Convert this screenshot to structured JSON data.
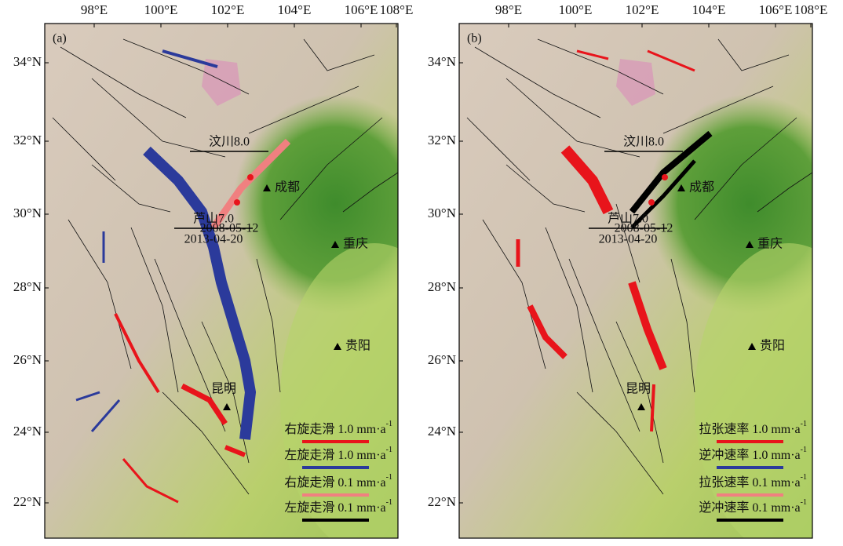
{
  "panels": [
    {
      "label": "(a)",
      "lon_ticks": [
        "98°E",
        "100°E",
        "102°E",
        "104°E",
        "106°E",
        "108°E"
      ],
      "lat_ticks": [
        "34°N",
        "32°N",
        "30°N",
        "28°N",
        "26°N",
        "24°N",
        "22°N"
      ],
      "events": [
        {
          "name": "汶川8.0",
          "date": "2008-05-12"
        },
        {
          "name": "芦山7.0",
          "date": "2013-04-20"
        }
      ],
      "cities": [
        "成都",
        "重庆",
        "贵阳",
        "昆明"
      ],
      "legend": [
        {
          "label": "右旋走滑 1.0 mm·a",
          "exp": "-1",
          "color": "#e8141b"
        },
        {
          "label": "左旋走滑 1.0 mm·a",
          "exp": "-1",
          "color": "#2b3a9b"
        },
        {
          "label": "右旋走滑 0.1 mm·a",
          "exp": "-1",
          "color": "#f08080"
        },
        {
          "label": "左旋走滑 0.1 mm·a",
          "exp": "-1",
          "color": "#000000"
        }
      ]
    },
    {
      "label": "(b)",
      "lon_ticks": [
        "98°E",
        "100°E",
        "102°E",
        "104°E",
        "106°E",
        "108°E"
      ],
      "lat_ticks": [
        "34°N",
        "32°N",
        "30°N",
        "28°N",
        "26°N",
        "24°N",
        "22°N"
      ],
      "events": [
        {
          "name": "汶川8.0",
          "date": "2008-05-12"
        },
        {
          "name": "芦山7.0",
          "date": "2013-04-20"
        }
      ],
      "cities": [
        "成都",
        "重庆",
        "贵阳",
        "昆明"
      ],
      "legend": [
        {
          "label": "拉张速率 1.0 mm·a",
          "exp": "-1",
          "color": "#e8141b"
        },
        {
          "label": "逆冲速率 1.0 mm·a",
          "exp": "-1",
          "color": "#2b3a9b"
        },
        {
          "label": "拉张速率 0.1 mm·a",
          "exp": "-1",
          "color": "#f08080"
        },
        {
          "label": "逆冲速率 0.1 mm·a",
          "exp": "-1",
          "color": "#000000"
        }
      ]
    }
  ]
}
